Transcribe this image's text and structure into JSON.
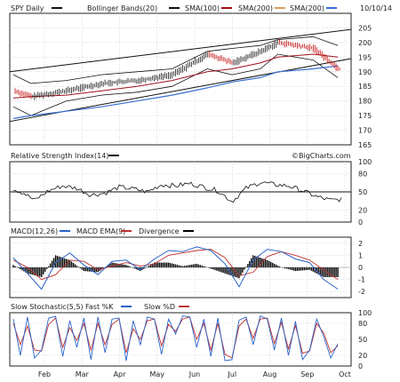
{
  "header": {
    "symbol_label": "SPY Daily",
    "bollinger_label": "Bollinger Bands(20)",
    "sma100_label": "SMA(100)",
    "sma200_label": "SMA(200)",
    "date_label": "10/10/14"
  },
  "watermark": "©BigCharts.com",
  "colors": {
    "background": "#ffffff",
    "panel_border": "#222222",
    "grid": "#bbbbbb",
    "candle_up": "#111111",
    "candle_down": "#c00000",
    "bollinger": "#111111",
    "sma100": "#a0101a",
    "sma200": "#d2a15c",
    "sma200_blue": "#3b6fd4",
    "macd": "#2a62c9",
    "macd_ema": "#c03030",
    "divergence": "#000000",
    "stoch_fast": "#2a62c9",
    "stoch_slow": "#c03030"
  },
  "x_axis_labels": [
    "Feb",
    "Mar",
    "Apr",
    "May",
    "Jun",
    "Jul",
    "Aug",
    "Sep",
    "Oct"
  ],
  "chart_data": [
    {
      "type": "line",
      "subtype": "candlestick",
      "title": "SPY Daily",
      "ylim": [
        165,
        210
      ],
      "y_ticks": [
        165,
        170,
        175,
        180,
        185,
        190,
        195,
        200,
        205
      ],
      "grid": true,
      "legend": "top",
      "series": [
        {
          "name": "SPY",
          "type": "candlestick",
          "t": [
            0,
            0.5,
            1.5,
            2.5,
            3.5,
            4.5,
            5.5,
            6.2,
            7.0,
            7.5,
            8.5,
            9.2
          ],
          "close": [
            183.5,
            181.5,
            183.5,
            186,
            187,
            189,
            196,
            193,
            197,
            200,
            198,
            191
          ]
        },
        {
          "name": "Bollinger Bands(20)",
          "values_upper": [
            189,
            186,
            187,
            189,
            190,
            191,
            197,
            198,
            199,
            201,
            202,
            199
          ],
          "values_lower": [
            178,
            175,
            180,
            182,
            183,
            185,
            191,
            189,
            191,
            196,
            194,
            188
          ]
        },
        {
          "name": "SMA(100)",
          "values": [
            181,
            181.5,
            182,
            183.5,
            185,
            187,
            190,
            191,
            193,
            195,
            196,
            195
          ]
        },
        {
          "name": "SMA(200)",
          "values": [
            174,
            175,
            176.5,
            178,
            180,
            182,
            184.5,
            186.5,
            188,
            190,
            191,
            192
          ]
        }
      ],
      "channel_lines": {
        "upper_start": 190,
        "upper_end": 204.5,
        "lower_start": 173,
        "lower_end": 194.5
      }
    },
    {
      "type": "line",
      "title": "Relative Strength Index(14)",
      "ylim": [
        0,
        100
      ],
      "y_ticks": [
        0,
        20,
        50,
        80,
        100
      ],
      "reference_line": 50,
      "series": [
        {
          "name": "RSI",
          "t": [
            0,
            0.3,
            0.6,
            1.0,
            1.4,
            1.8,
            2.2,
            2.6,
            3.0,
            3.4,
            3.8,
            4.2,
            4.6,
            5.0,
            5.4,
            5.8,
            6.2,
            6.6,
            7.0,
            7.4,
            7.8,
            8.2,
            8.6,
            9.0,
            9.3
          ],
          "values": [
            55,
            48,
            36,
            52,
            60,
            56,
            45,
            48,
            58,
            55,
            50,
            62,
            60,
            64,
            58,
            52,
            34,
            56,
            66,
            62,
            60,
            52,
            42,
            36,
            38
          ]
        }
      ]
    },
    {
      "type": "line",
      "title": "MACD(12,26)",
      "ylim": [
        -2.5,
        2.5
      ],
      "y_ticks": [
        -2,
        -1,
        0,
        1,
        2
      ],
      "series": [
        {
          "name": "MACD",
          "t": [
            0,
            0.4,
            0.8,
            1.2,
            1.6,
            2.0,
            2.4,
            2.8,
            3.2,
            3.6,
            4.0,
            4.4,
            4.8,
            5.2,
            5.6,
            6.0,
            6.4,
            6.8,
            7.2,
            7.6,
            8.0,
            8.4,
            8.8,
            9.2
          ],
          "values": [
            0.8,
            -0.5,
            -1.8,
            0.4,
            1.2,
            0.2,
            -0.6,
            0.5,
            0.6,
            -0.2,
            0.7,
            1.4,
            1.3,
            1.7,
            1.4,
            0.3,
            -1.6,
            0.6,
            1.5,
            1.3,
            0.7,
            0.4,
            -1.0,
            -1.8
          ]
        },
        {
          "name": "MACD EMA(9)",
          "t": [
            0,
            0.4,
            0.8,
            1.2,
            1.6,
            2.0,
            2.4,
            2.8,
            3.2,
            3.6,
            4.0,
            4.4,
            4.8,
            5.2,
            5.6,
            6.0,
            6.4,
            6.8,
            7.2,
            7.6,
            8.0,
            8.4,
            8.8,
            9.2
          ],
          "values": [
            0.6,
            0.0,
            -1.0,
            -0.6,
            0.6,
            0.5,
            -0.2,
            0.1,
            0.4,
            0.1,
            0.3,
            1.0,
            1.2,
            1.4,
            1.5,
            0.8,
            -0.7,
            -0.4,
            0.9,
            1.3,
            1.0,
            0.6,
            -0.2,
            -1.0
          ]
        },
        {
          "name": "Divergence",
          "type": "histogram"
        }
      ]
    },
    {
      "type": "line",
      "title": "Slow Stochastic(5,5)",
      "ylim": [
        0,
        100
      ],
      "y_ticks": [
        0,
        20,
        50,
        80,
        100
      ],
      "series": [
        {
          "name": "Fast %K",
          "t": [
            0,
            0.2,
            0.4,
            0.6,
            0.8,
            1.0,
            1.2,
            1.4,
            1.6,
            1.8,
            2.0,
            2.2,
            2.4,
            2.6,
            2.8,
            3.0,
            3.2,
            3.4,
            3.6,
            3.8,
            4.0,
            4.2,
            4.4,
            4.6,
            4.8,
            5.0,
            5.2,
            5.4,
            5.6,
            5.8,
            6.0,
            6.2,
            6.4,
            6.6,
            6.8,
            7.0,
            7.2,
            7.4,
            7.6,
            7.8,
            8.0,
            8.2,
            8.4,
            8.6,
            8.8,
            9.0,
            9.2
          ],
          "values": [
            88,
            20,
            92,
            15,
            30,
            90,
            93,
            18,
            85,
            35,
            90,
            12,
            92,
            25,
            88,
            90,
            10,
            85,
            40,
            92,
            88,
            22,
            88,
            60,
            94,
            92,
            35,
            88,
            18,
            90,
            10,
            12,
            86,
            92,
            40,
            94,
            88,
            30,
            90,
            20,
            84,
            12,
            30,
            88,
            55,
            15,
            42
          ]
        },
        {
          "name": "Slow %D",
          "t": [
            0,
            0.2,
            0.4,
            0.6,
            0.8,
            1.0,
            1.2,
            1.4,
            1.6,
            1.8,
            2.0,
            2.2,
            2.4,
            2.6,
            2.8,
            3.0,
            3.2,
            3.4,
            3.6,
            3.8,
            4.0,
            4.2,
            4.4,
            4.6,
            4.8,
            5.0,
            5.2,
            5.4,
            5.6,
            5.8,
            6.0,
            6.2,
            6.4,
            6.6,
            6.8,
            7.0,
            7.2,
            7.4,
            7.6,
            7.8,
            8.0,
            8.2,
            8.4,
            8.6,
            8.8,
            9.0,
            9.2
          ],
          "values": [
            80,
            40,
            75,
            30,
            28,
            78,
            90,
            35,
            72,
            48,
            80,
            30,
            80,
            40,
            78,
            88,
            25,
            70,
            50,
            85,
            88,
            38,
            78,
            65,
            88,
            92,
            50,
            80,
            30,
            80,
            22,
            15,
            75,
            88,
            52,
            88,
            90,
            42,
            82,
            32,
            76,
            24,
            28,
            80,
            62,
            25,
            38
          ]
        }
      ]
    }
  ],
  "panels": {
    "rsi": {
      "title": "Relative Strength Index(14)"
    },
    "macd": {
      "title": "MACD(12,26)",
      "ema_label": "MACD EMA(9)",
      "divergence_label": "Divergence"
    },
    "stoch": {
      "title": "Slow Stochastic(5,5)",
      "fast_label": "Fast %K",
      "slow_label": "Slow %D"
    }
  }
}
